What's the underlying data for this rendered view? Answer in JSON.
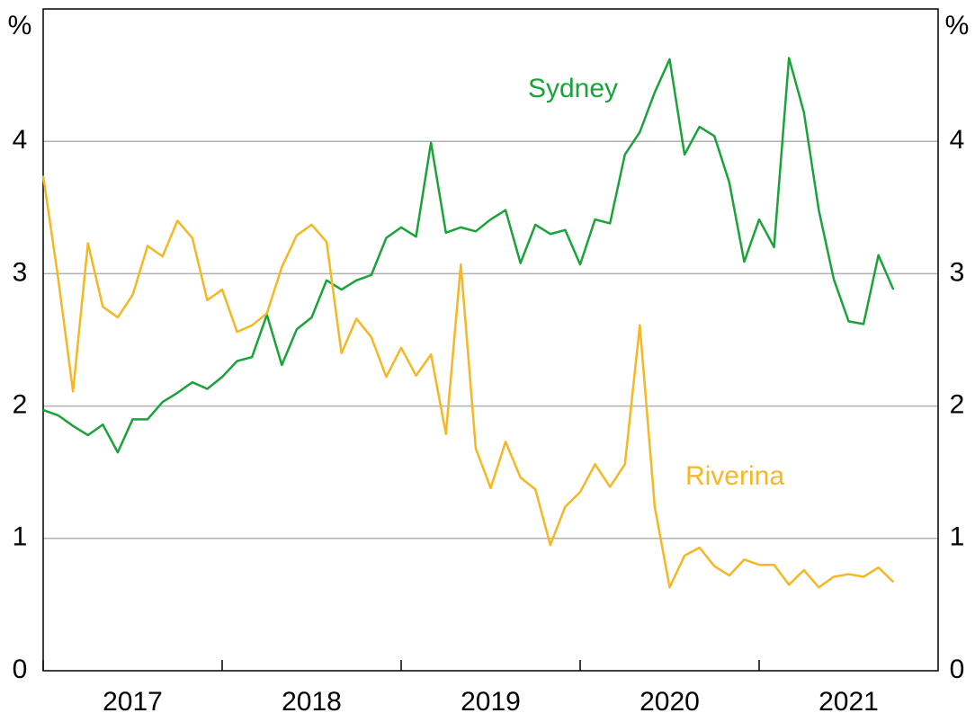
{
  "chart_data": {
    "type": "line",
    "y_label": "%",
    "x": [
      "2017-01",
      "2017-02",
      "2017-03",
      "2017-04",
      "2017-05",
      "2017-06",
      "2017-07",
      "2017-08",
      "2017-09",
      "2017-10",
      "2017-11",
      "2017-12",
      "2018-01",
      "2018-02",
      "2018-03",
      "2018-04",
      "2018-05",
      "2018-06",
      "2018-07",
      "2018-08",
      "2018-09",
      "2018-10",
      "2018-11",
      "2018-12",
      "2019-01",
      "2019-02",
      "2019-03",
      "2019-04",
      "2019-05",
      "2019-06",
      "2019-07",
      "2019-08",
      "2019-09",
      "2019-10",
      "2019-11",
      "2019-12",
      "2020-01",
      "2020-02",
      "2020-03",
      "2020-04",
      "2020-05",
      "2020-06",
      "2020-07",
      "2020-08",
      "2020-09",
      "2020-10",
      "2020-11",
      "2020-12",
      "2021-01",
      "2021-02",
      "2021-03",
      "2021-04",
      "2021-05",
      "2021-06",
      "2021-07",
      "2021-08",
      "2021-09",
      "2021-10"
    ],
    "xlim": [
      "2017-01",
      "2022-01"
    ],
    "xticks": [
      2017,
      2018,
      2019,
      2020,
      2021
    ],
    "ylim": [
      0,
      5
    ],
    "yticks": [
      0,
      1,
      2,
      3,
      4
    ],
    "grid": true,
    "series": [
      {
        "name": "Sydney",
        "color": "#1aa33a",
        "values": [
          1.97,
          1.93,
          1.85,
          1.78,
          1.86,
          1.65,
          1.9,
          1.9,
          2.03,
          2.1,
          2.18,
          2.13,
          2.22,
          2.34,
          2.37,
          2.69,
          2.31,
          2.58,
          2.67,
          2.95,
          2.88,
          2.95,
          2.99,
          3.27,
          3.35,
          3.28,
          3.99,
          3.31,
          3.35,
          3.32,
          3.41,
          3.48,
          3.08,
          3.37,
          3.3,
          3.33,
          3.07,
          3.41,
          3.38,
          3.9,
          4.07,
          4.37,
          4.62,
          3.9,
          4.11,
          4.04,
          3.69,
          3.09,
          3.41,
          3.2,
          4.63,
          4.22,
          3.48,
          2.96,
          2.64,
          2.62,
          3.14,
          2.88
        ]
      },
      {
        "name": "Riverina",
        "color": "#f7b723",
        "values": [
          3.74,
          2.97,
          2.11,
          3.23,
          2.75,
          2.67,
          2.84,
          3.21,
          3.13,
          3.4,
          3.27,
          2.8,
          2.88,
          2.56,
          2.61,
          2.7,
          3.05,
          3.29,
          3.37,
          3.24,
          2.4,
          2.66,
          2.52,
          2.22,
          2.44,
          2.23,
          2.39,
          1.79,
          3.07,
          1.68,
          1.38,
          1.73,
          1.46,
          1.37,
          0.95,
          1.24,
          1.35,
          1.56,
          1.39,
          1.56,
          2.61,
          1.24,
          0.63,
          0.87,
          0.93,
          0.79,
          0.72,
          0.84,
          0.8,
          0.8,
          0.65,
          0.76,
          0.63,
          0.71,
          0.73,
          0.71,
          0.78,
          0.67
        ]
      }
    ]
  }
}
